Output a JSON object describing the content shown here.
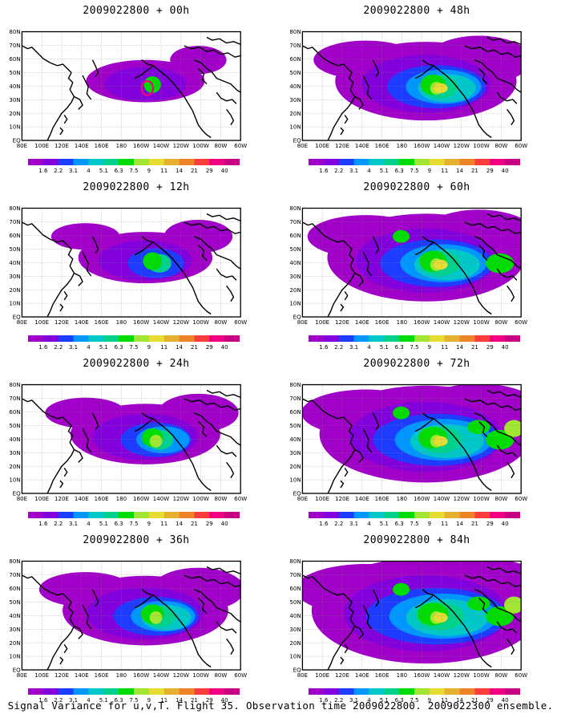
{
  "panels": [
    {
      "title": "2009022800 + 00h",
      "lead": 0
    },
    {
      "title": "2009022800 + 48h",
      "lead": 48
    },
    {
      "title": "2009022800 + 12h",
      "lead": 12
    },
    {
      "title": "2009022800 + 60h",
      "lead": 60
    },
    {
      "title": "2009022800 + 24h",
      "lead": 24
    },
    {
      "title": "2009022800 + 72h",
      "lead": 72
    },
    {
      "title": "2009022800 + 36h",
      "lead": 36
    },
    {
      "title": "2009022800 + 84h",
      "lead": 84
    }
  ],
  "lat_labels": [
    "80N",
    "70N",
    "60N",
    "50N",
    "40N",
    "30N",
    "20N",
    "10N",
    "EQ"
  ],
  "lon_labels": [
    "80E",
    "100E",
    "120E",
    "140E",
    "160E",
    "180",
    "160W",
    "140W",
    "120W",
    "100W",
    "80W",
    "60W"
  ],
  "colorbar": {
    "levels": [
      "1.6",
      "2.2",
      "3.1",
      "4",
      "5.1",
      "6.3",
      "7.5",
      "9",
      "11",
      "14",
      "21",
      "29",
      "40"
    ],
    "colors": [
      "#a000c8",
      "#8200dc",
      "#1e3cff",
      "#0096ff",
      "#00c8c8",
      "#00d28c",
      "#00dc00",
      "#a0e632",
      "#e6dc32",
      "#e6af2d",
      "#f08228",
      "#fa3c3c",
      "#f00082",
      "#c80082"
    ]
  },
  "caption": "Signal Variance for u,v,T. Flight 35. Observation time 2009022800. 2009022300 ensemble."
}
